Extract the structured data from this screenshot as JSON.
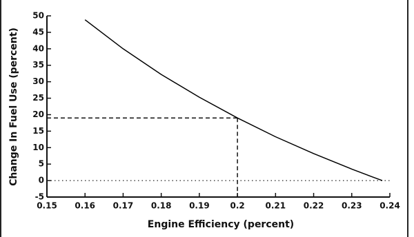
{
  "chart_data": {
    "type": "line",
    "x_label": "Engine Efficiency (percent)",
    "y_label": "Change In Fuel Use (percent)",
    "x": [
      0.16,
      0.17,
      0.18,
      0.19,
      0.2,
      0.21,
      0.22,
      0.23,
      0.235,
      0.238
    ],
    "values": [
      48.8,
      40.0,
      32.2,
      25.3,
      19.0,
      13.3,
      8.2,
      3.5,
      1.3,
      0
    ],
    "color": "#000000",
    "xlim": [
      0.15,
      0.24
    ],
    "xticks": [
      0.15,
      0.16,
      0.17,
      0.18,
      0.19,
      0.2,
      0.21,
      0.22,
      0.23,
      0.24
    ],
    "ylim": [
      -5,
      50
    ],
    "yticks": [
      -5,
      0,
      5,
      10,
      15,
      20,
      25,
      30,
      35,
      40,
      45,
      50
    ],
    "reference_point": {
      "x": 0.2,
      "y": 19
    },
    "zero_line": true,
    "grid": false
  }
}
